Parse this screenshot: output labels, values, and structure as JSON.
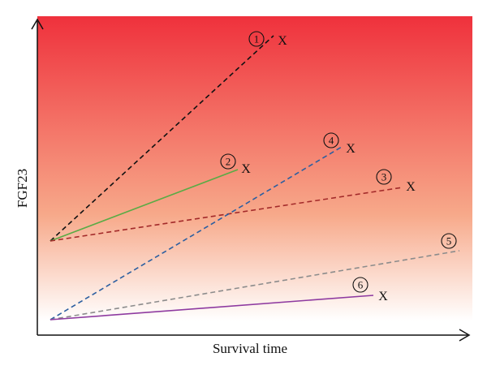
{
  "axes": {
    "xlabel": "Survival time",
    "ylabel": "FGF23"
  },
  "background_gradient": {
    "top_color": "#ef313c",
    "mid_color": "#f7a98a",
    "bottom_color": "#ffffff"
  },
  "end_marker": "X",
  "trajectories": [
    {
      "id": "1",
      "label": "①",
      "color": "#111111",
      "style": "dashed",
      "has_end_marker": true
    },
    {
      "id": "2",
      "label": "②",
      "color": "#5aab45",
      "style": "solid",
      "has_end_marker": true
    },
    {
      "id": "3",
      "label": "③",
      "color": "#a32a2a",
      "style": "dashed",
      "has_end_marker": true
    },
    {
      "id": "4",
      "label": "④",
      "color": "#2c5fa0",
      "style": "dashed",
      "has_end_marker": true
    },
    {
      "id": "5",
      "label": "⑤",
      "color": "#8c8c8c",
      "style": "dashed",
      "has_end_marker": false
    },
    {
      "id": "6",
      "label": "⑥",
      "color": "#8e3aa0",
      "style": "solid",
      "has_end_marker": true
    }
  ]
}
